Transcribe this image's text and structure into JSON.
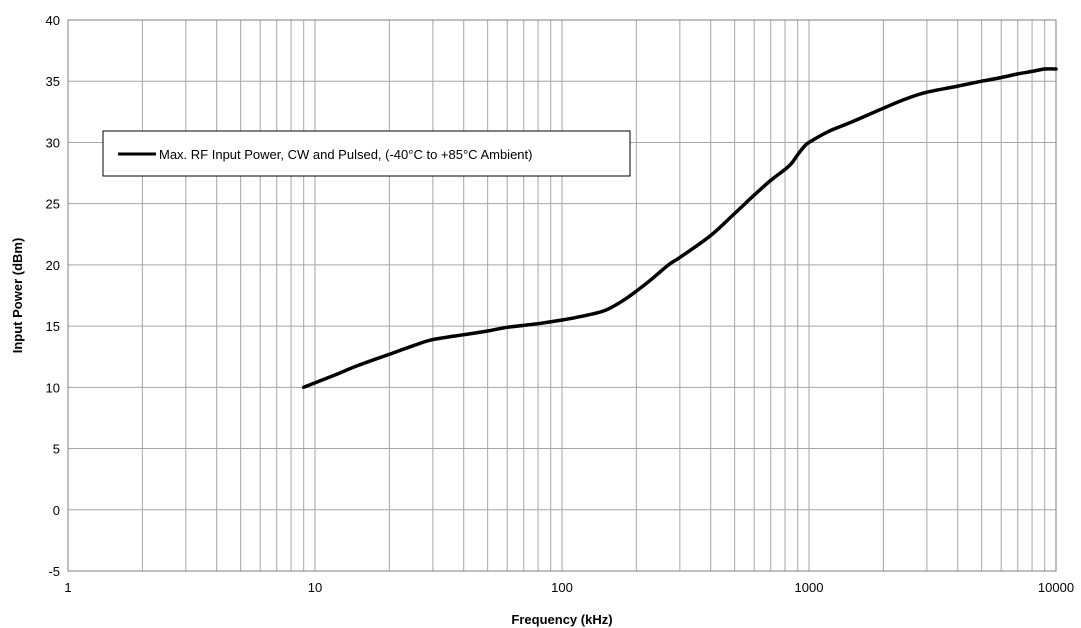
{
  "chart_data": {
    "type": "line",
    "title": "",
    "xlabel": "Frequency (kHz)",
    "ylabel": "Input Power (dBm)",
    "x_scale": "log",
    "xlim": [
      1,
      10000
    ],
    "ylim": [
      -5,
      40
    ],
    "x_ticks": [
      "1",
      "10",
      "100",
      "1000",
      "10000"
    ],
    "y_ticks": [
      "-5",
      "0",
      "5",
      "10",
      "15",
      "20",
      "25",
      "30",
      "35",
      "40"
    ],
    "grid": true,
    "legend_position": "top-left",
    "series": [
      {
        "name": "Max. RF Input Power, CW and Pulsed, (-40°C to +85°C Ambient)",
        "color": "#000000",
        "x": [
          9,
          12,
          15,
          20,
          25,
          30,
          40,
          50,
          60,
          80,
          100,
          120,
          150,
          180,
          220,
          270,
          300,
          400,
          500,
          600,
          700,
          800,
          850,
          900,
          950,
          1000,
          1200,
          1500,
          2000,
          2500,
          3000,
          4000,
          5000,
          6000,
          7000,
          8000,
          9000,
          10000
        ],
        "y": [
          10,
          11,
          11.8,
          12.7,
          13.4,
          13.9,
          14.3,
          14.6,
          14.9,
          15.2,
          15.5,
          15.8,
          16.3,
          17.2,
          18.5,
          20.0,
          20.6,
          22.4,
          24.2,
          25.7,
          26.9,
          27.8,
          28.3,
          29.0,
          29.6,
          30.0,
          30.9,
          31.7,
          32.8,
          33.6,
          34.1,
          34.6,
          35.0,
          35.3,
          35.6,
          35.8,
          36.0,
          36.0
        ]
      }
    ]
  }
}
